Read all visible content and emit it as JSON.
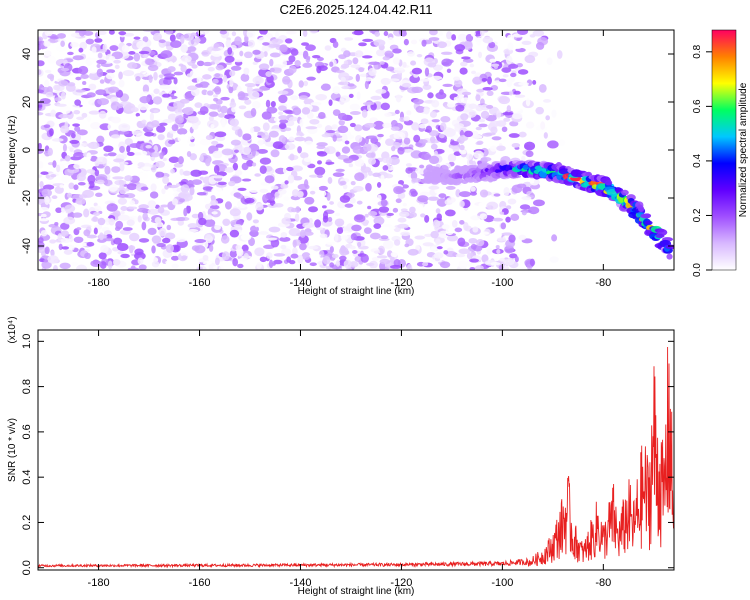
{
  "title": "C2E6.2025.124.04.42.R11",
  "chart_data": [
    {
      "type": "heatmap",
      "xlabel": "Height of straight line (km)",
      "ylabel": "Frequency (Hz)",
      "xlim": [
        -192,
        -66
      ],
      "ylim": [
        -50,
        50
      ],
      "xticks": [
        -180,
        -160,
        -140,
        -120,
        -100,
        -80
      ],
      "yticks": [
        -40,
        -20,
        0,
        20,
        40
      ],
      "colorbar": {
        "label": "Normalized spectral amplitude",
        "range": [
          0,
          0.88
        ],
        "ticks": [
          "0.0",
          "0.2",
          "0.4",
          "0.6",
          "0.8"
        ],
        "colormap": [
          "#ffffff",
          "#d8b8ff",
          "#a050ff",
          "#6000ff",
          "#0000ff",
          "#00c8ff",
          "#00ff60",
          "#ffff00",
          "#ff8000",
          "#ff0060"
        ]
      },
      "noise_region": {
        "x_from": -192,
        "x_to": -100,
        "amplitude_range": [
          0.0,
          0.15
        ]
      },
      "ridge": {
        "points": [
          [
            -115,
            -10
          ],
          [
            -110,
            -11
          ],
          [
            -105,
            -10
          ],
          [
            -100,
            -8
          ],
          [
            -95,
            -8
          ],
          [
            -90,
            -9
          ],
          [
            -85,
            -12
          ],
          [
            -80,
            -15
          ],
          [
            -75,
            -22
          ],
          [
            -72,
            -29
          ],
          [
            -69,
            -36
          ],
          [
            -67,
            -42
          ]
        ],
        "peak_amplitude": 0.88,
        "peak_at": [
          -81,
          -15
        ]
      },
      "grid": false
    },
    {
      "type": "line",
      "xlabel": "Height of straight line (km)",
      "ylabel": "SNR (10 * v/v)",
      "y_multiplier": "(x10⁴)",
      "xlim": [
        -192,
        -66
      ],
      "ylim": [
        -0.01,
        1.05
      ],
      "xticks": [
        -180,
        -160,
        -140,
        -120,
        -100,
        -80
      ],
      "yticks": [
        "0.0",
        "0.2",
        "0.4",
        "0.6",
        "0.8",
        "1.0"
      ],
      "color": "#e82020",
      "series": [
        {
          "points": [
            [
              -192,
              0.01
            ],
            [
              -150,
              0.012
            ],
            [
              -120,
              0.015
            ],
            [
              -100,
              0.02
            ],
            [
              -95,
              0.03
            ],
            [
              -92,
              0.08
            ],
            [
              -90,
              0.15
            ],
            [
              -88,
              0.3
            ],
            [
              -87,
              0.4
            ],
            [
              -86,
              0.2
            ],
            [
              -84,
              0.1
            ],
            [
              -82,
              0.22
            ],
            [
              -81,
              0.3
            ],
            [
              -80,
              0.18
            ],
            [
              -78,
              0.35
            ],
            [
              -77,
              0.2
            ],
            [
              -75,
              0.37
            ],
            [
              -74,
              0.28
            ],
            [
              -72,
              0.55
            ],
            [
              -71,
              0.45
            ],
            [
              -70,
              0.89
            ],
            [
              -69,
              0.62
            ],
            [
              -68,
              0.48
            ],
            [
              -67,
              1.05
            ],
            [
              -66,
              0.3
            ]
          ]
        }
      ],
      "grid": false
    }
  ]
}
